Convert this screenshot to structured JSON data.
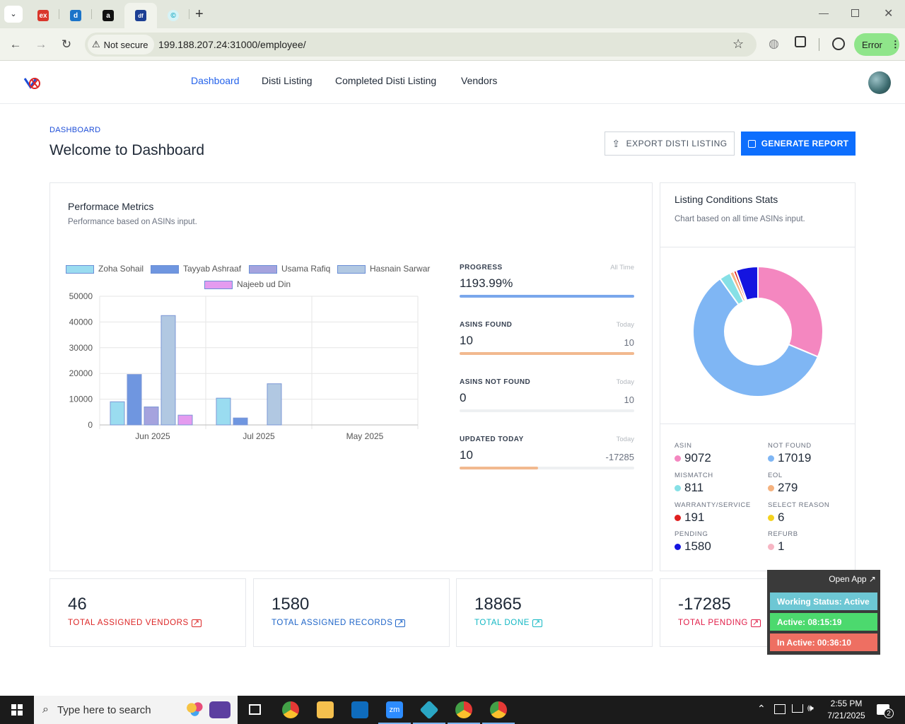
{
  "browser": {
    "url": "199.188.207.24:31000/employee/",
    "not_secure": "Not secure",
    "error_label": "Error"
  },
  "nav": {
    "items": [
      "Dashboard",
      "Disti Listing",
      "Completed Disti Listing",
      "Vendors"
    ],
    "active": "Dashboard"
  },
  "page": {
    "breadcrumb": "DASHBOARD",
    "title": "Welcome to Dashboard",
    "export_button": "EXPORT DISTI LISTING",
    "generate_button": "GENERATE REPORT"
  },
  "performance": {
    "title": "Performace Metrics",
    "subtitle": "Performance based on ASINs input."
  },
  "chart_data": [
    {
      "type": "bar",
      "categories": [
        "Jun 2025",
        "Jul 2025",
        "May 2025"
      ],
      "ylim": [
        0,
        50000
      ],
      "yticks": [
        "50000",
        "40000",
        "30000",
        "20000",
        "10000",
        "0"
      ],
      "series": [
        {
          "name": "Zoha Sohail",
          "color": "#9adcf0",
          "values": [
            9000,
            10400,
            0
          ]
        },
        {
          "name": "Tayyab Ashraaf",
          "color": "#6f96e0",
          "values": [
            19600,
            2700,
            0
          ]
        },
        {
          "name": "Usama Rafiq",
          "color": "#a5a3de",
          "values": [
            7000,
            0,
            0
          ]
        },
        {
          "name": "Hasnain Sarwar",
          "color": "#b1c8e2",
          "values": [
            42500,
            16000,
            0
          ]
        },
        {
          "name": "Najeeb ud Din",
          "color": "#e49bef",
          "values": [
            3800,
            0,
            0
          ]
        }
      ]
    },
    {
      "type": "pie",
      "title": "Listing Conditions Stats",
      "subtitle": "Chart based on all time ASINs input.",
      "slices": [
        {
          "label": "ASIN",
          "value": 9072,
          "color": "#f487c0"
        },
        {
          "label": "NOT FOUND",
          "value": 17019,
          "color": "#7fb6f4"
        },
        {
          "label": "MISMATCH",
          "value": 811,
          "color": "#86e0e6"
        },
        {
          "label": "EOL",
          "value": 279,
          "color": "#f5b27f"
        },
        {
          "label": "WARRANTY/SERVICE",
          "value": 191,
          "color": "#e01f1f"
        },
        {
          "label": "SELECT REASON",
          "value": 6,
          "color": "#f4d21f"
        },
        {
          "label": "PENDING",
          "value": 1580,
          "color": "#1414e0"
        },
        {
          "label": "REFURB",
          "value": 1,
          "color": "#f7b6c4"
        }
      ]
    }
  ],
  "metrics": [
    {
      "label": "PROGRESS",
      "right": "All Time",
      "value": "1193.99%",
      "sub": "",
      "fill": 1.0,
      "color": "#7aa7ec"
    },
    {
      "label": "ASINS FOUND",
      "right": "Today",
      "value": "10",
      "sub": "10",
      "fill": 1.0,
      "color": "#f2b98f"
    },
    {
      "label": "ASINS NOT FOUND",
      "right": "Today",
      "value": "0",
      "sub": "10",
      "fill": 0,
      "color": "#f2b98f"
    },
    {
      "label": "UPDATED TODAY",
      "right": "Today",
      "value": "10",
      "sub": "-17285",
      "fill": 0.45,
      "color": "#f2b98f"
    }
  ],
  "stats": [
    {
      "label": "ASIN",
      "value": "9072",
      "color": "#f487c0"
    },
    {
      "label": "NOT FOUND",
      "value": "17019",
      "color": "#7fb6f4"
    },
    {
      "label": "MISMATCH",
      "value": "811",
      "color": "#86e0e6"
    },
    {
      "label": "EOL",
      "value": "279",
      "color": "#f5b27f"
    },
    {
      "label": "WARRANTY/SERVICE",
      "value": "191",
      "color": "#e01f1f"
    },
    {
      "label": "SELECT REASON",
      "value": "6",
      "color": "#f4d21f"
    },
    {
      "label": "PENDING",
      "value": "1580",
      "color": "#1414e0"
    },
    {
      "label": "REFURB",
      "value": "1",
      "color": "#f7b6c4"
    }
  ],
  "kpis": [
    {
      "value": "46",
      "label": "TOTAL ASSIGNED VENDORS",
      "color": "#dc2626"
    },
    {
      "value": "1580",
      "label": "TOTAL ASSIGNED RECORDS",
      "color": "#1d64c8"
    },
    {
      "value": "18865",
      "label": "TOTAL DONE",
      "color": "#14b8c4"
    },
    {
      "value": "-17285",
      "label": "TOTAL PENDING",
      "color": "#e11d48"
    }
  ],
  "widget": {
    "open_app": "Open App ↗",
    "status": "Working Status: Active",
    "active": "Active: 08:15:19",
    "inactive": "In Active: 00:36:10"
  },
  "taskbar": {
    "search_placeholder": "Type here to search",
    "time": "2:55 PM",
    "date": "7/21/2025",
    "notifications": "2"
  }
}
